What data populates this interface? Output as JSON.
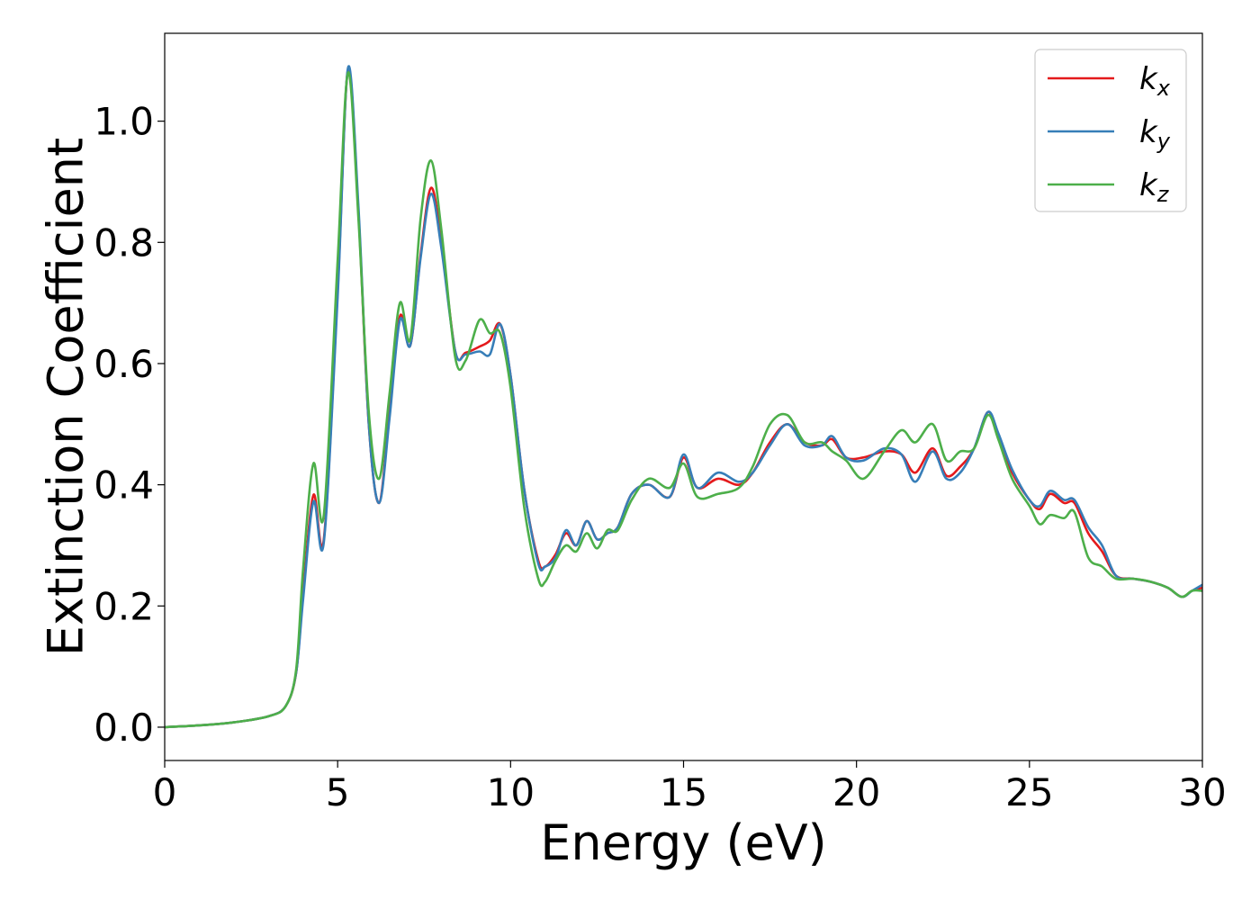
{
  "chart_data": {
    "type": "line",
    "title": "",
    "xlabel": "Energy (eV)",
    "ylabel": "Extinction Coefficient",
    "xlim": [
      0,
      30
    ],
    "ylim": [
      -0.055,
      1.145
    ],
    "xticks": [
      0,
      5,
      10,
      15,
      20,
      25,
      30
    ],
    "xtick_labels": [
      "0",
      "5",
      "10",
      "15",
      "20",
      "25",
      "30"
    ],
    "yticks": [
      0.0,
      0.2,
      0.4,
      0.6,
      0.8,
      1.0
    ],
    "ytick_labels": [
      "0.0",
      "0.2",
      "0.4",
      "0.6",
      "0.8",
      "1.0"
    ],
    "grid": false,
    "legend_position": "top-right",
    "x": [
      0,
      1,
      2,
      3,
      3.5,
      3.8,
      4.0,
      4.3,
      4.6,
      5.0,
      5.3,
      5.6,
      5.9,
      6.2,
      6.5,
      6.8,
      7.1,
      7.4,
      7.7,
      8.0,
      8.4,
      8.7,
      9.1,
      9.4,
      9.7,
      10.0,
      10.4,
      10.8,
      11.0,
      11.3,
      11.6,
      11.9,
      12.2,
      12.5,
      12.8,
      13.1,
      13.5,
      14.0,
      14.6,
      15.0,
      15.4,
      16.0,
      16.6,
      17.0,
      17.5,
      18.0,
      18.5,
      19.0,
      19.3,
      19.7,
      20.2,
      20.8,
      21.3,
      21.7,
      22.2,
      22.6,
      23.0,
      23.4,
      23.8,
      24.1,
      24.5,
      25.0,
      25.3,
      25.6,
      26.0,
      26.3,
      26.7,
      27.1,
      27.5,
      28.0,
      28.5,
      29.0,
      29.4,
      29.7,
      30.0
    ],
    "series": [
      {
        "name": "k",
        "subscript": "x",
        "color": "#e41a1c",
        "values": [
          0.0,
          0.003,
          0.008,
          0.018,
          0.035,
          0.09,
          0.22,
          0.383,
          0.31,
          0.72,
          1.085,
          0.85,
          0.5,
          0.37,
          0.52,
          0.678,
          0.63,
          0.78,
          0.89,
          0.8,
          0.62,
          0.618,
          0.628,
          0.638,
          0.665,
          0.58,
          0.39,
          0.275,
          0.265,
          0.285,
          0.32,
          0.3,
          0.34,
          0.31,
          0.32,
          0.33,
          0.385,
          0.4,
          0.38,
          0.445,
          0.395,
          0.41,
          0.4,
          0.42,
          0.47,
          0.5,
          0.47,
          0.465,
          0.475,
          0.445,
          0.445,
          0.455,
          0.45,
          0.42,
          0.46,
          0.415,
          0.43,
          0.46,
          0.52,
          0.48,
          0.42,
          0.375,
          0.36,
          0.385,
          0.37,
          0.37,
          0.32,
          0.29,
          0.25,
          0.245,
          0.24,
          0.23,
          0.215,
          0.225,
          0.23
        ]
      },
      {
        "name": "k",
        "subscript": "y",
        "color": "#377eb8",
        "values": [
          0.0,
          0.003,
          0.008,
          0.018,
          0.035,
          0.09,
          0.21,
          0.372,
          0.305,
          0.71,
          1.088,
          0.86,
          0.5,
          0.37,
          0.51,
          0.672,
          0.63,
          0.775,
          0.88,
          0.79,
          0.62,
          0.615,
          0.62,
          0.615,
          0.665,
          0.58,
          0.39,
          0.27,
          0.265,
          0.28,
          0.325,
          0.3,
          0.34,
          0.31,
          0.32,
          0.33,
          0.385,
          0.4,
          0.38,
          0.45,
          0.395,
          0.42,
          0.405,
          0.42,
          0.465,
          0.5,
          0.465,
          0.465,
          0.48,
          0.445,
          0.44,
          0.46,
          0.45,
          0.405,
          0.455,
          0.41,
          0.42,
          0.46,
          0.52,
          0.485,
          0.425,
          0.375,
          0.365,
          0.39,
          0.375,
          0.375,
          0.33,
          0.3,
          0.25,
          0.245,
          0.24,
          0.23,
          0.215,
          0.225,
          0.235
        ]
      },
      {
        "name": "k",
        "subscript": "z",
        "color": "#4daf4a",
        "values": [
          0.0,
          0.003,
          0.008,
          0.018,
          0.035,
          0.095,
          0.26,
          0.435,
          0.35,
          0.77,
          1.08,
          0.84,
          0.52,
          0.41,
          0.55,
          0.7,
          0.64,
          0.84,
          0.935,
          0.82,
          0.61,
          0.605,
          0.672,
          0.65,
          0.65,
          0.56,
          0.36,
          0.245,
          0.24,
          0.275,
          0.3,
          0.29,
          0.32,
          0.295,
          0.325,
          0.325,
          0.375,
          0.41,
          0.395,
          0.435,
          0.38,
          0.385,
          0.395,
          0.43,
          0.5,
          0.515,
          0.47,
          0.47,
          0.455,
          0.44,
          0.41,
          0.455,
          0.49,
          0.47,
          0.5,
          0.44,
          0.455,
          0.46,
          0.515,
          0.475,
          0.41,
          0.365,
          0.335,
          0.35,
          0.345,
          0.355,
          0.28,
          0.265,
          0.245,
          0.245,
          0.24,
          0.23,
          0.215,
          0.225,
          0.225
        ]
      }
    ]
  }
}
